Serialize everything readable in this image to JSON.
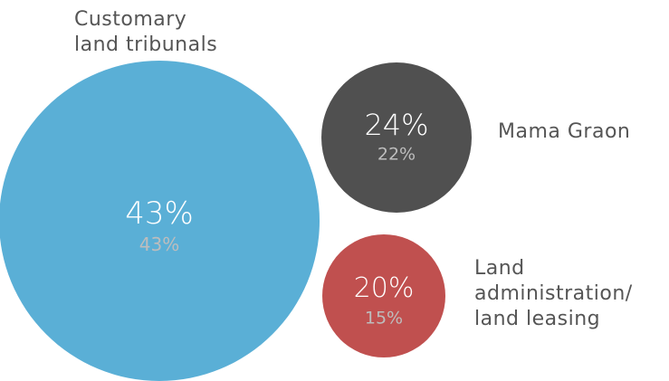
{
  "chart_data": {
    "type": "bubble",
    "bubbles": [
      {
        "category": "Customary land tribunals",
        "label_lines": [
          "Customary",
          "land tribunals"
        ],
        "value": 43,
        "value_label": "43%",
        "secondary_value": 43,
        "secondary_label": "43%",
        "color": "#5aafd6"
      },
      {
        "category": "Mama Graon",
        "label_lines": [
          "Mama Graon"
        ],
        "value": 24,
        "value_label": "24%",
        "secondary_value": 22,
        "secondary_label": "22%",
        "color": "#505050"
      },
      {
        "category": "Land administration/ land leasing",
        "label_lines": [
          "Land",
          "administration/",
          "land leasing"
        ],
        "value": 20,
        "value_label": "20%",
        "secondary_value": 15,
        "secondary_label": "15%",
        "color": "#c0504f"
      }
    ]
  }
}
